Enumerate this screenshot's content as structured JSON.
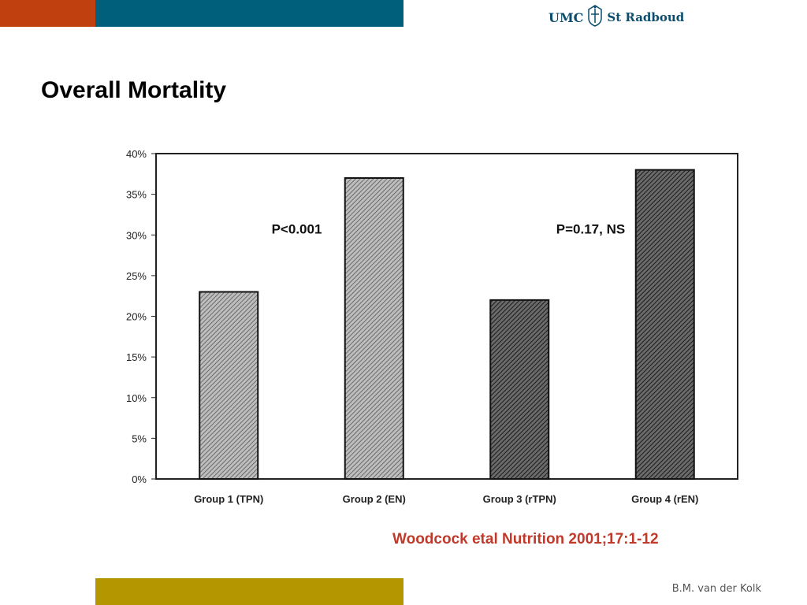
{
  "header": {
    "logo_left": "UMC",
    "logo_right": "St Radboud",
    "logo_icon": "radboud-crest-icon"
  },
  "slide": {
    "title": "Overall Mortality",
    "citation": "Woodcock etal Nutrition 2001;17:1-12",
    "author": "B.M. van der Kolk"
  },
  "chart_data": {
    "type": "bar",
    "title": "",
    "xlabel": "",
    "ylabel": "",
    "categories": [
      "Group 1 (TPN)",
      "Group 2 (EN)",
      "Group 3 (rTPN)",
      "Group 4 (rEN)"
    ],
    "values": [
      0.23,
      0.37,
      0.22,
      0.38
    ],
    "ylim": [
      0,
      0.4
    ],
    "yticks": [
      "0%",
      "5%",
      "10%",
      "15%",
      "20%",
      "25%",
      "30%",
      "35%",
      "40%"
    ],
    "bar_colors": [
      "#9a9a9a",
      "#8e8e8e",
      "#3e3e3e",
      "#3a3a3a"
    ],
    "annotations": [
      "P<0.001",
      "P=0.17, NS"
    ],
    "grid": false,
    "legend": "none"
  }
}
